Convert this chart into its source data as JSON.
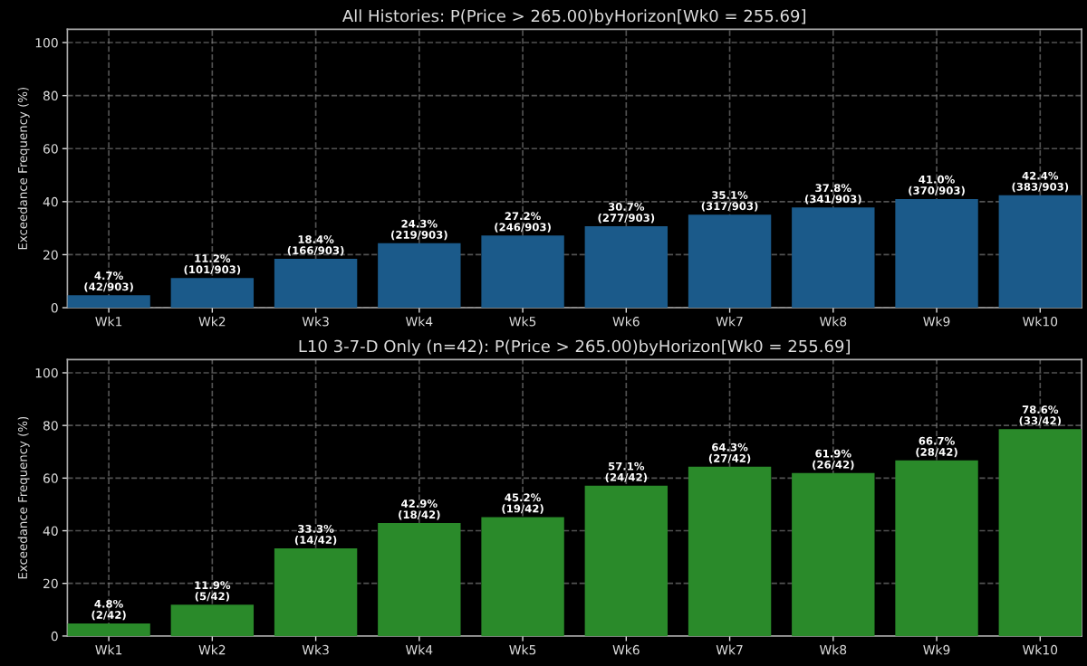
{
  "chart_data": [
    {
      "type": "bar",
      "title": "All Histories: P(Price > 265.00)byHorizon[Wk0 = 255.69]",
      "ylabel": "Exceedance Frequency (%)",
      "categories": [
        "Wk1",
        "Wk2",
        "Wk3",
        "Wk4",
        "Wk5",
        "Wk6",
        "Wk7",
        "Wk8",
        "Wk9",
        "Wk10"
      ],
      "values": [
        4.7,
        11.2,
        18.4,
        24.3,
        27.2,
        30.7,
        35.1,
        37.8,
        41.0,
        42.4
      ],
      "value_labels": [
        "4.7%\n(42/903)",
        "11.2%\n(101/903)",
        "18.4%\n(166/903)",
        "24.3%\n(219/903)",
        "27.2%\n(246/903)",
        "30.7%\n(277/903)",
        "35.1%\n(317/903)",
        "37.8%\n(341/903)",
        "41.0%\n(370/903)",
        "42.4%\n(383/903)"
      ],
      "color": "#1b5a8a",
      "ylim": [
        0,
        105
      ],
      "yticks": [
        0,
        20,
        40,
        60,
        80,
        100
      ],
      "grid": true
    },
    {
      "type": "bar",
      "title": "L10 3-7-D Only (n=42): P(Price > 265.00)byHorizon[Wk0 = 255.69]",
      "ylabel": "Exceedance Frequency (%)",
      "categories": [
        "Wk1",
        "Wk2",
        "Wk3",
        "Wk4",
        "Wk5",
        "Wk6",
        "Wk7",
        "Wk8",
        "Wk9",
        "Wk10"
      ],
      "values": [
        4.8,
        11.9,
        33.3,
        42.9,
        45.2,
        57.1,
        64.3,
        61.9,
        66.7,
        78.6
      ],
      "value_labels": [
        "4.8%\n(2/42)",
        "11.9%\n(5/42)",
        "33.3%\n(14/42)",
        "42.9%\n(18/42)",
        "45.2%\n(19/42)",
        "57.1%\n(24/42)",
        "64.3%\n(27/42)",
        "61.9%\n(26/42)",
        "66.7%\n(28/42)",
        "78.6%\n(33/42)"
      ],
      "color": "#2a8a2a",
      "ylim": [
        0,
        105
      ],
      "yticks": [
        0,
        20,
        40,
        60,
        80,
        100
      ],
      "grid": true
    }
  ]
}
